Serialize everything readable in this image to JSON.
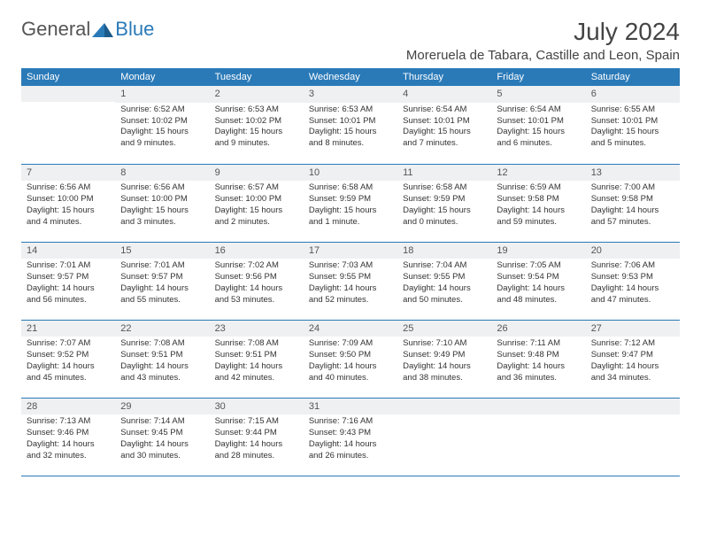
{
  "brand": {
    "general": "General",
    "blue": "Blue"
  },
  "title": "July 2024",
  "location": "Moreruela de Tabara, Castille and Leon, Spain",
  "colors": {
    "header_bg": "#2a7ab8",
    "header_fg": "#ffffff",
    "daynum_bg": "#eef0f2",
    "row_border": "#2a7ab8",
    "text": "#333333",
    "page_bg": "#ffffff"
  },
  "weekdays": [
    "Sunday",
    "Monday",
    "Tuesday",
    "Wednesday",
    "Thursday",
    "Friday",
    "Saturday"
  ],
  "weeks": [
    [
      null,
      {
        "n": "1",
        "sr": "Sunrise: 6:52 AM",
        "ss": "Sunset: 10:02 PM",
        "dl1": "Daylight: 15 hours",
        "dl2": "and 9 minutes."
      },
      {
        "n": "2",
        "sr": "Sunrise: 6:53 AM",
        "ss": "Sunset: 10:02 PM",
        "dl1": "Daylight: 15 hours",
        "dl2": "and 9 minutes."
      },
      {
        "n": "3",
        "sr": "Sunrise: 6:53 AM",
        "ss": "Sunset: 10:01 PM",
        "dl1": "Daylight: 15 hours",
        "dl2": "and 8 minutes."
      },
      {
        "n": "4",
        "sr": "Sunrise: 6:54 AM",
        "ss": "Sunset: 10:01 PM",
        "dl1": "Daylight: 15 hours",
        "dl2": "and 7 minutes."
      },
      {
        "n": "5",
        "sr": "Sunrise: 6:54 AM",
        "ss": "Sunset: 10:01 PM",
        "dl1": "Daylight: 15 hours",
        "dl2": "and 6 minutes."
      },
      {
        "n": "6",
        "sr": "Sunrise: 6:55 AM",
        "ss": "Sunset: 10:01 PM",
        "dl1": "Daylight: 15 hours",
        "dl2": "and 5 minutes."
      }
    ],
    [
      {
        "n": "7",
        "sr": "Sunrise: 6:56 AM",
        "ss": "Sunset: 10:00 PM",
        "dl1": "Daylight: 15 hours",
        "dl2": "and 4 minutes."
      },
      {
        "n": "8",
        "sr": "Sunrise: 6:56 AM",
        "ss": "Sunset: 10:00 PM",
        "dl1": "Daylight: 15 hours",
        "dl2": "and 3 minutes."
      },
      {
        "n": "9",
        "sr": "Sunrise: 6:57 AM",
        "ss": "Sunset: 10:00 PM",
        "dl1": "Daylight: 15 hours",
        "dl2": "and 2 minutes."
      },
      {
        "n": "10",
        "sr": "Sunrise: 6:58 AM",
        "ss": "Sunset: 9:59 PM",
        "dl1": "Daylight: 15 hours",
        "dl2": "and 1 minute."
      },
      {
        "n": "11",
        "sr": "Sunrise: 6:58 AM",
        "ss": "Sunset: 9:59 PM",
        "dl1": "Daylight: 15 hours",
        "dl2": "and 0 minutes."
      },
      {
        "n": "12",
        "sr": "Sunrise: 6:59 AM",
        "ss": "Sunset: 9:58 PM",
        "dl1": "Daylight: 14 hours",
        "dl2": "and 59 minutes."
      },
      {
        "n": "13",
        "sr": "Sunrise: 7:00 AM",
        "ss": "Sunset: 9:58 PM",
        "dl1": "Daylight: 14 hours",
        "dl2": "and 57 minutes."
      }
    ],
    [
      {
        "n": "14",
        "sr": "Sunrise: 7:01 AM",
        "ss": "Sunset: 9:57 PM",
        "dl1": "Daylight: 14 hours",
        "dl2": "and 56 minutes."
      },
      {
        "n": "15",
        "sr": "Sunrise: 7:01 AM",
        "ss": "Sunset: 9:57 PM",
        "dl1": "Daylight: 14 hours",
        "dl2": "and 55 minutes."
      },
      {
        "n": "16",
        "sr": "Sunrise: 7:02 AM",
        "ss": "Sunset: 9:56 PM",
        "dl1": "Daylight: 14 hours",
        "dl2": "and 53 minutes."
      },
      {
        "n": "17",
        "sr": "Sunrise: 7:03 AM",
        "ss": "Sunset: 9:55 PM",
        "dl1": "Daylight: 14 hours",
        "dl2": "and 52 minutes."
      },
      {
        "n": "18",
        "sr": "Sunrise: 7:04 AM",
        "ss": "Sunset: 9:55 PM",
        "dl1": "Daylight: 14 hours",
        "dl2": "and 50 minutes."
      },
      {
        "n": "19",
        "sr": "Sunrise: 7:05 AM",
        "ss": "Sunset: 9:54 PM",
        "dl1": "Daylight: 14 hours",
        "dl2": "and 48 minutes."
      },
      {
        "n": "20",
        "sr": "Sunrise: 7:06 AM",
        "ss": "Sunset: 9:53 PM",
        "dl1": "Daylight: 14 hours",
        "dl2": "and 47 minutes."
      }
    ],
    [
      {
        "n": "21",
        "sr": "Sunrise: 7:07 AM",
        "ss": "Sunset: 9:52 PM",
        "dl1": "Daylight: 14 hours",
        "dl2": "and 45 minutes."
      },
      {
        "n": "22",
        "sr": "Sunrise: 7:08 AM",
        "ss": "Sunset: 9:51 PM",
        "dl1": "Daylight: 14 hours",
        "dl2": "and 43 minutes."
      },
      {
        "n": "23",
        "sr": "Sunrise: 7:08 AM",
        "ss": "Sunset: 9:51 PM",
        "dl1": "Daylight: 14 hours",
        "dl2": "and 42 minutes."
      },
      {
        "n": "24",
        "sr": "Sunrise: 7:09 AM",
        "ss": "Sunset: 9:50 PM",
        "dl1": "Daylight: 14 hours",
        "dl2": "and 40 minutes."
      },
      {
        "n": "25",
        "sr": "Sunrise: 7:10 AM",
        "ss": "Sunset: 9:49 PM",
        "dl1": "Daylight: 14 hours",
        "dl2": "and 38 minutes."
      },
      {
        "n": "26",
        "sr": "Sunrise: 7:11 AM",
        "ss": "Sunset: 9:48 PM",
        "dl1": "Daylight: 14 hours",
        "dl2": "and 36 minutes."
      },
      {
        "n": "27",
        "sr": "Sunrise: 7:12 AM",
        "ss": "Sunset: 9:47 PM",
        "dl1": "Daylight: 14 hours",
        "dl2": "and 34 minutes."
      }
    ],
    [
      {
        "n": "28",
        "sr": "Sunrise: 7:13 AM",
        "ss": "Sunset: 9:46 PM",
        "dl1": "Daylight: 14 hours",
        "dl2": "and 32 minutes."
      },
      {
        "n": "29",
        "sr": "Sunrise: 7:14 AM",
        "ss": "Sunset: 9:45 PM",
        "dl1": "Daylight: 14 hours",
        "dl2": "and 30 minutes."
      },
      {
        "n": "30",
        "sr": "Sunrise: 7:15 AM",
        "ss": "Sunset: 9:44 PM",
        "dl1": "Daylight: 14 hours",
        "dl2": "and 28 minutes."
      },
      {
        "n": "31",
        "sr": "Sunrise: 7:16 AM",
        "ss": "Sunset: 9:43 PM",
        "dl1": "Daylight: 14 hours",
        "dl2": "and 26 minutes."
      },
      null,
      null,
      null
    ]
  ]
}
